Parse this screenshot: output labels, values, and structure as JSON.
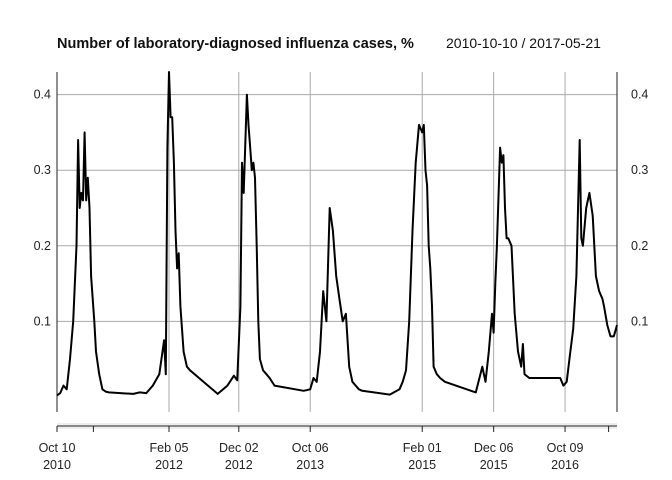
{
  "chart_data": {
    "type": "line",
    "title": "Number of laboratory-diagnosed influenza cases, %",
    "subtitle": "2010-10-10 / 2017-05-21",
    "x_start": "2010-10-10",
    "x_end": "2017-05-21",
    "ylim": [
      -0.02,
      0.43
    ],
    "y_ticks": [
      0.1,
      0.2,
      0.3,
      0.4
    ],
    "y_tick_labels": [
      "0.1",
      "0.2",
      "0.3",
      "0.4"
    ],
    "x_ticks": [
      {
        "date": "2010-10-10",
        "label_line1": "Oct 10",
        "label_line2": "2010"
      },
      {
        "date": "2012-02-05",
        "label_line1": "Feb 05",
        "label_line2": "2012"
      },
      {
        "date": "2012-12-02",
        "label_line1": "Dec 02",
        "label_line2": "2012"
      },
      {
        "date": "2013-10-06",
        "label_line1": "Oct 06",
        "label_line2": "2013"
      },
      {
        "date": "2015-02-01",
        "label_line1": "Feb 01",
        "label_line2": "2015"
      },
      {
        "date": "2015-12-06",
        "label_line1": "Dec 06",
        "label_line2": "2015"
      },
      {
        "date": "2016-10-09",
        "label_line1": "Oct 09",
        "label_line2": "2016"
      }
    ],
    "grid": true,
    "x": [
      "2010-10-10",
      "2010-10-24",
      "2010-11-07",
      "2010-11-21",
      "2010-12-05",
      "2010-12-19",
      "2011-01-02",
      "2011-01-09",
      "2011-01-16",
      "2011-01-23",
      "2011-01-30",
      "2011-02-06",
      "2011-02-13",
      "2011-02-20",
      "2011-02-27",
      "2011-03-06",
      "2011-03-13",
      "2011-03-20",
      "2011-03-27",
      "2011-04-10",
      "2011-04-24",
      "2011-05-08",
      "2011-05-22",
      "2011-09-04",
      "2011-10-02",
      "2011-10-30",
      "2011-11-27",
      "2011-12-25",
      "2012-01-08",
      "2012-01-15",
      "2012-01-22",
      "2012-01-29",
      "2012-02-05",
      "2012-02-12",
      "2012-02-19",
      "2012-02-26",
      "2012-03-04",
      "2012-03-11",
      "2012-03-18",
      "2012-03-25",
      "2012-04-08",
      "2012-04-22",
      "2012-05-06",
      "2012-09-02",
      "2012-10-14",
      "2012-11-11",
      "2012-11-25",
      "2012-12-02",
      "2012-12-09",
      "2012-12-16",
      "2012-12-23",
      "2013-01-06",
      "2013-01-13",
      "2013-01-20",
      "2013-01-27",
      "2013-02-03",
      "2013-02-10",
      "2013-02-17",
      "2013-02-24",
      "2013-03-03",
      "2013-03-17",
      "2013-03-31",
      "2013-04-14",
      "2013-05-05",
      "2013-09-08",
      "2013-10-06",
      "2013-10-20",
      "2013-11-03",
      "2013-11-17",
      "2013-12-01",
      "2013-12-15",
      "2013-12-29",
      "2014-01-12",
      "2014-01-26",
      "2014-02-09",
      "2014-02-23",
      "2014-03-09",
      "2014-03-23",
      "2014-04-06",
      "2014-04-20",
      "2014-05-04",
      "2014-05-18",
      "2014-09-14",
      "2014-10-26",
      "2014-11-09",
      "2014-11-23",
      "2014-12-07",
      "2014-12-21",
      "2015-01-04",
      "2015-01-18",
      "2015-02-01",
      "2015-02-08",
      "2015-02-15",
      "2015-02-22",
      "2015-03-01",
      "2015-03-08",
      "2015-03-15",
      "2015-03-22",
      "2015-04-05",
      "2015-04-19",
      "2015-05-10",
      "2015-09-20",
      "2015-10-18",
      "2015-11-01",
      "2015-11-15",
      "2015-11-29",
      "2015-12-06",
      "2015-12-13",
      "2015-12-20",
      "2016-01-03",
      "2016-01-10",
      "2016-01-17",
      "2016-01-24",
      "2016-01-31",
      "2016-02-07",
      "2016-02-21",
      "2016-03-06",
      "2016-03-20",
      "2016-04-03",
      "2016-04-10",
      "2016-04-17",
      "2016-05-08",
      "2016-09-18",
      "2016-10-02",
      "2016-10-16",
      "2016-10-30",
      "2016-11-13",
      "2016-11-27",
      "2016-12-11",
      "2016-12-18",
      "2016-12-25",
      "2017-01-08",
      "2017-01-22",
      "2017-02-05",
      "2017-02-19",
      "2017-03-05",
      "2017-03-19",
      "2017-03-26",
      "2017-04-09",
      "2017-04-23",
      "2017-05-07",
      "2017-05-21"
    ],
    "values": [
      0.002,
      0.005,
      0.015,
      0.01,
      0.05,
      0.1,
      0.2,
      0.34,
      0.25,
      0.27,
      0.26,
      0.35,
      0.26,
      0.29,
      0.25,
      0.16,
      0.13,
      0.1,
      0.06,
      0.03,
      0.01,
      0.007,
      0.006,
      0.004,
      0.006,
      0.005,
      0.015,
      0.03,
      0.06,
      0.075,
      0.03,
      0.33,
      0.43,
      0.37,
      0.37,
      0.31,
      0.22,
      0.17,
      0.19,
      0.12,
      0.06,
      0.04,
      0.035,
      0.004,
      0.015,
      0.028,
      0.022,
      0.07,
      0.12,
      0.31,
      0.27,
      0.4,
      0.36,
      0.33,
      0.3,
      0.31,
      0.29,
      0.2,
      0.1,
      0.05,
      0.035,
      0.03,
      0.025,
      0.015,
      0.008,
      0.01,
      0.025,
      0.02,
      0.06,
      0.14,
      0.1,
      0.25,
      0.22,
      0.16,
      0.13,
      0.1,
      0.11,
      0.04,
      0.02,
      0.015,
      0.01,
      0.008,
      0.003,
      0.01,
      0.02,
      0.035,
      0.1,
      0.22,
      0.31,
      0.36,
      0.35,
      0.36,
      0.3,
      0.28,
      0.2,
      0.17,
      0.12,
      0.04,
      0.03,
      0.025,
      0.02,
      0.006,
      0.04,
      0.02,
      0.06,
      0.11,
      0.085,
      0.15,
      0.2,
      0.33,
      0.31,
      0.32,
      0.25,
      0.21,
      0.21,
      0.2,
      0.11,
      0.06,
      0.04,
      0.07,
      0.03,
      0.025,
      0.025,
      0.015,
      0.02,
      0.055,
      0.09,
      0.16,
      0.34,
      0.21,
      0.2,
      0.25,
      0.27,
      0.24,
      0.16,
      0.14,
      0.13,
      0.12,
      0.095,
      0.08,
      0.08,
      0.095
    ]
  }
}
